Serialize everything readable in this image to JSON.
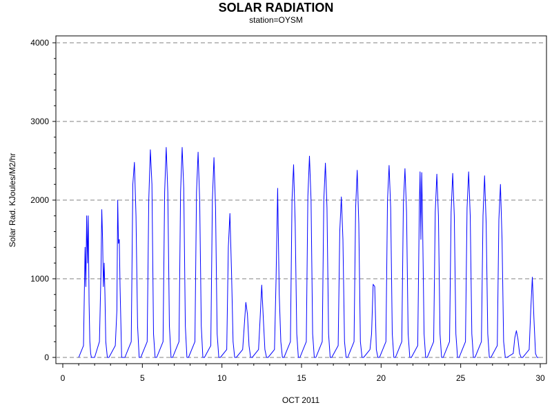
{
  "chart_data": {
    "type": "line",
    "title": "SOLAR RADIATION",
    "subtitle": "station=OYSM",
    "xlabel": "OCT 2011",
    "ylabel": "Solar Rad. KJoules/M2/hr",
    "xlim": [
      0,
      30
    ],
    "ylim": [
      0,
      4000
    ],
    "xticks": [
      0,
      5,
      10,
      15,
      20,
      25,
      30
    ],
    "yticks": [
      0,
      1000,
      2000,
      3000,
      4000
    ],
    "grid": "horizontal-dashed",
    "series": [
      {
        "color": "#0000ff",
        "x": [
          1.0,
          1.3,
          1.4,
          1.45,
          1.5,
          1.55,
          1.6,
          1.65,
          1.7,
          1.75,
          1.8,
          1.9,
          2.0,
          2.3,
          2.4,
          2.45,
          2.5,
          2.55,
          2.6,
          2.65,
          2.7,
          2.8,
          2.9,
          3.3,
          3.4,
          3.45,
          3.5,
          3.55,
          3.6,
          3.7,
          3.8,
          3.9,
          4.3,
          4.4,
          4.5,
          4.6,
          4.7,
          4.8,
          4.9,
          5.3,
          5.4,
          5.5,
          5.6,
          5.7,
          5.8,
          5.9,
          6.3,
          6.4,
          6.5,
          6.6,
          6.7,
          6.8,
          6.9,
          7.3,
          7.4,
          7.5,
          7.6,
          7.7,
          7.8,
          7.9,
          8.3,
          8.4,
          8.5,
          8.6,
          8.7,
          8.8,
          8.9,
          9.3,
          9.4,
          9.5,
          9.6,
          9.7,
          9.8,
          9.9,
          10.3,
          10.4,
          10.5,
          10.6,
          10.7,
          10.8,
          10.9,
          11.3,
          11.4,
          11.5,
          11.6,
          11.7,
          11.8,
          11.9,
          12.3,
          12.4,
          12.5,
          12.6,
          12.7,
          12.8,
          12.9,
          13.3,
          13.4,
          13.5,
          13.6,
          13.7,
          13.8,
          13.9,
          14.3,
          14.4,
          14.5,
          14.6,
          14.7,
          14.8,
          14.9,
          15.3,
          15.4,
          15.5,
          15.6,
          15.7,
          15.8,
          15.9,
          16.3,
          16.4,
          16.5,
          16.6,
          16.7,
          16.8,
          16.9,
          17.3,
          17.4,
          17.5,
          17.6,
          17.7,
          17.8,
          17.9,
          18.3,
          18.4,
          18.5,
          18.6,
          18.7,
          18.8,
          18.9,
          19.3,
          19.4,
          19.5,
          19.6,
          19.7,
          19.8,
          19.9,
          20.3,
          20.4,
          20.5,
          20.6,
          20.7,
          20.8,
          20.9,
          21.3,
          21.4,
          21.5,
          21.6,
          21.7,
          21.8,
          21.9,
          22.3,
          22.4,
          22.45,
          22.5,
          22.55,
          22.6,
          22.7,
          22.8,
          22.9,
          23.3,
          23.4,
          23.5,
          23.6,
          23.7,
          23.8,
          23.9,
          24.3,
          24.4,
          24.5,
          24.6,
          24.7,
          24.8,
          24.9,
          25.3,
          25.4,
          25.5,
          25.6,
          25.7,
          25.8,
          25.9,
          26.3,
          26.4,
          26.5,
          26.6,
          26.7,
          26.8,
          26.9,
          27.3,
          27.4,
          27.5,
          27.6,
          27.7,
          27.8,
          27.9,
          28.3,
          28.4,
          28.5,
          28.6,
          28.7,
          28.8,
          28.9,
          29.3,
          29.4,
          29.5,
          29.6,
          29.7,
          29.8,
          29.9
        ],
        "y": [
          0,
          150,
          1400,
          900,
          1800,
          1200,
          1800,
          700,
          200,
          50,
          0,
          0,
          0,
          200,
          1100,
          1880,
          1500,
          900,
          1200,
          800,
          200,
          0,
          0,
          150,
          600,
          2000,
          1450,
          1500,
          900,
          0,
          0,
          0,
          200,
          2200,
          2480,
          1800,
          400,
          0,
          0,
          200,
          2000,
          2640,
          2200,
          300,
          0,
          0,
          200,
          2100,
          2670,
          2100,
          400,
          0,
          0,
          200,
          2100,
          2670,
          2150,
          400,
          0,
          0,
          200,
          2100,
          2610,
          2000,
          400,
          0,
          0,
          150,
          2000,
          2540,
          1900,
          300,
          0,
          0,
          100,
          1400,
          1830,
          1100,
          200,
          0,
          0,
          100,
          400,
          700,
          550,
          150,
          0,
          0,
          100,
          500,
          920,
          500,
          100,
          0,
          0,
          100,
          1000,
          2150,
          800,
          200,
          0,
          0,
          200,
          2000,
          2450,
          1700,
          300,
          0,
          0,
          200,
          2050,
          2560,
          2000,
          300,
          0,
          0,
          200,
          2000,
          2470,
          1900,
          300,
          0,
          0,
          150,
          1600,
          2040,
          1500,
          200,
          0,
          0,
          200,
          1900,
          2380,
          1700,
          200,
          0,
          0,
          100,
          300,
          930,
          900,
          100,
          0,
          0,
          200,
          2000,
          2440,
          1900,
          300,
          0,
          0,
          200,
          1950,
          2400,
          1850,
          300,
          0,
          0,
          150,
          1900,
          2360,
          1500,
          2350,
          1800,
          300,
          0,
          0,
          200,
          1850,
          2330,
          1800,
          300,
          0,
          0,
          200,
          1850,
          2340,
          1800,
          300,
          0,
          0,
          200,
          1900,
          2360,
          1800,
          300,
          0,
          0,
          200,
          1800,
          2310,
          1700,
          300,
          0,
          0,
          150,
          1750,
          2200,
          1500,
          200,
          0,
          0,
          50,
          250,
          340,
          230,
          50,
          0,
          0,
          100,
          600,
          1020,
          500,
          50,
          0,
          0
        ]
      }
    ]
  }
}
